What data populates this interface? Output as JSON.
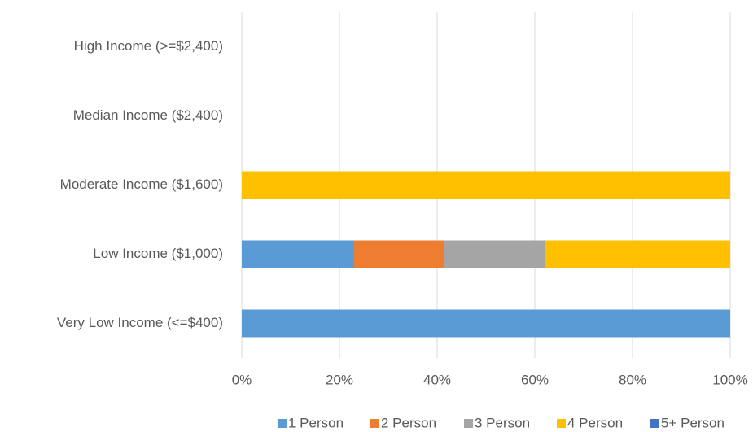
{
  "chart_data": {
    "type": "bar",
    "orientation": "horizontal",
    "stacked": true,
    "categories": [
      "Very Low Income (<=$400)",
      "Low Income ($1,000)",
      "Moderate Income ($1,600)",
      "Median Income ($2,400)",
      "High Income (>=$2,400)"
    ],
    "series": [
      {
        "name": "1 Person",
        "color": "#5b9bd5",
        "values": [
          100,
          23,
          0,
          0,
          0
        ]
      },
      {
        "name": "2 Person",
        "color": "#ed7d31",
        "values": [
          0,
          18.5,
          0,
          0,
          0
        ]
      },
      {
        "name": "3 Person",
        "color": "#a5a5a5",
        "values": [
          0,
          20.5,
          0,
          0,
          0
        ]
      },
      {
        "name": "4 Person",
        "color": "#ffc000",
        "values": [
          0,
          38,
          100,
          0,
          0
        ]
      },
      {
        "name": "5+ Person",
        "color": "#4472c4",
        "values": [
          0,
          0,
          0,
          0,
          0
        ]
      }
    ],
    "xlim": [
      0,
      100
    ],
    "xticks": [
      {
        "value": 0,
        "label": "0%"
      },
      {
        "value": 20,
        "label": "20%"
      },
      {
        "value": 40,
        "label": "40%"
      },
      {
        "value": 60,
        "label": "60%"
      },
      {
        "value": 80,
        "label": "80%"
      },
      {
        "value": 100,
        "label": "100%"
      }
    ],
    "grid": true,
    "legend": "bottom"
  }
}
